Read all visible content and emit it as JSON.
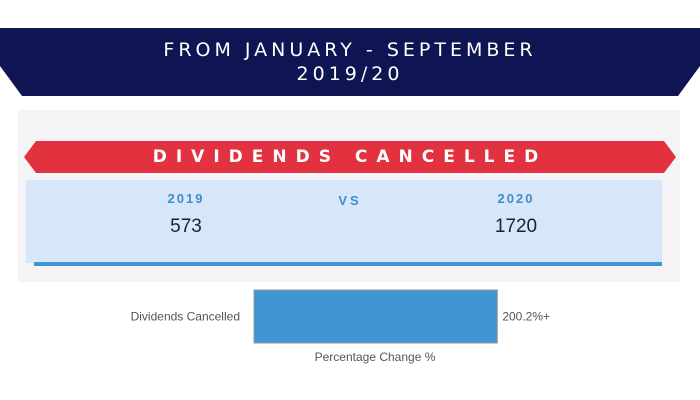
{
  "header": {
    "title_line1": "FROM JANUARY - SEPTEMBER",
    "title_line2": "2019/20",
    "color": "#0e1552"
  },
  "comparison": {
    "heading": "DIVIDENDS CANCELLED",
    "heading_color": "#e3323f",
    "left_year": "2019",
    "left_value": "573",
    "vs_label": "VS",
    "right_year": "2020",
    "right_value": "1720"
  },
  "chart_data": {
    "type": "bar",
    "orientation": "horizontal",
    "categories": [
      "Dividends Cancelled"
    ],
    "values": [
      200.2
    ],
    "data_labels": [
      "200.2%+"
    ],
    "xlabel": "Percentage Change %",
    "xlim": [
      0,
      260
    ],
    "grid": false,
    "bar_color": "#3f95d3"
  }
}
